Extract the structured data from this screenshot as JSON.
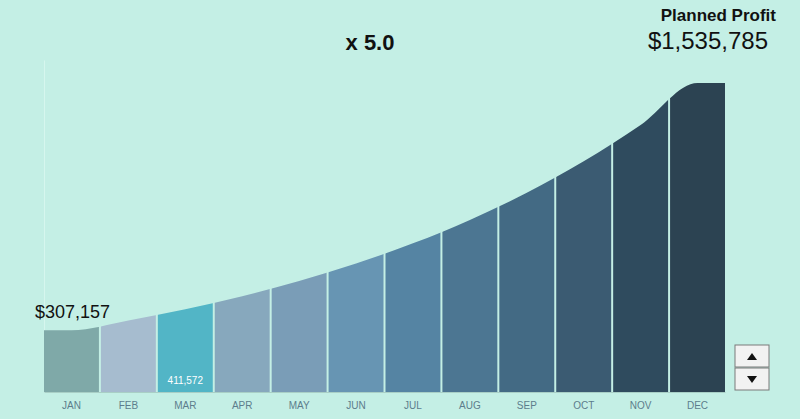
{
  "chart_data": {
    "type": "bar",
    "title": "Planned Profit",
    "annotation": "x 5.0",
    "categories": [
      "JAN",
      "FEB",
      "MAR",
      "APR",
      "MAY",
      "JUN",
      "JUL",
      "AUG",
      "SEP",
      "OCT",
      "NOV",
      "DEC"
    ],
    "values": [
      307157,
      355556,
      411572,
      476423,
      551492,
      638391,
      738984,
      855425,
      990213,
      1146241,
      1326854,
      1535785
    ],
    "value_labels": [
      "$307,157",
      null,
      "411,572",
      null,
      null,
      null,
      null,
      null,
      null,
      null,
      null,
      "$1,535,785"
    ],
    "colors": [
      "#7fa9a8",
      "#a6bccf",
      "#52b5c6",
      "#87a8bd",
      "#7a9db7",
      "#6795b3",
      "#5584a3",
      "#4c7692",
      "#436a84",
      "#3b5b72",
      "#2f4b5e",
      "#2c4352"
    ],
    "ylim": [
      0,
      1650000
    ],
    "tick_labels": "x"
  }
}
